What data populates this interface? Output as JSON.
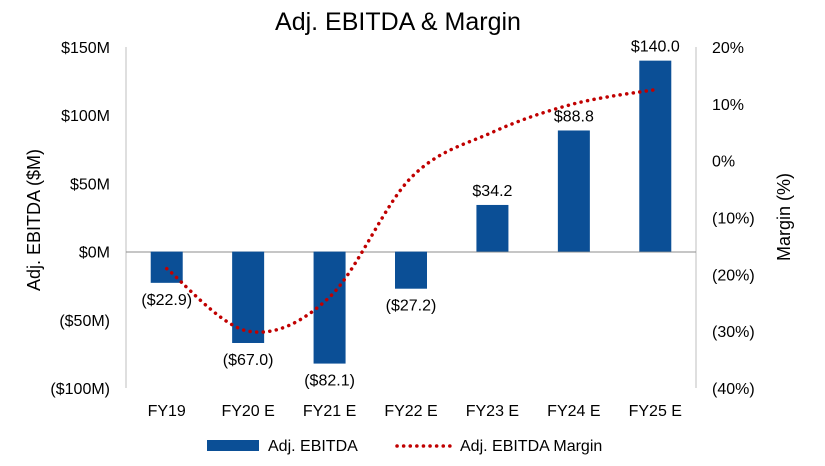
{
  "chart_data": {
    "type": "bar",
    "title": "Adj. EBITDA & Margin",
    "categories": [
      "FY19",
      "FY20 E",
      "FY21 E",
      "FY22 E",
      "FY23 E",
      "FY24 E",
      "FY25 E"
    ],
    "series": [
      {
        "name": "Adj. EBITDA",
        "type": "bar",
        "axis": "left",
        "color": "#0b4f96",
        "values": [
          -22.9,
          -67.0,
          -82.1,
          -27.2,
          34.2,
          88.8,
          140.0
        ],
        "data_labels": [
          "($22.9)",
          "($67.0)",
          "($82.1)",
          "($27.2)",
          "$34.2",
          "$88.8",
          "$140.0"
        ]
      },
      {
        "name": "Adj. EBITDA Margin",
        "type": "line",
        "style": "dotted",
        "axis": "right",
        "color": "#c00000",
        "values": [
          -19,
          -30,
          -24,
          -3,
          5,
          10,
          12.5
        ]
      }
    ],
    "ylabel": "Adj. EBITDA ($M)",
    "ylim": [
      -100,
      150
    ],
    "yticks": [
      -100,
      -50,
      0,
      50,
      100,
      150
    ],
    "ytick_labels": [
      "($100M)",
      "($50M)",
      "$0M",
      "$50M",
      "$100M",
      "$150M"
    ],
    "y2label": "Margin (%)",
    "y2lim": [
      -40,
      20
    ],
    "y2ticks": [
      -40,
      -30,
      -20,
      -10,
      0,
      10,
      20
    ],
    "y2tick_labels": [
      "(40%)",
      "(30%)",
      "(20%)",
      "(10%)",
      "0%",
      "10%",
      "20%"
    ],
    "grid": false,
    "legend_position": "bottom-center"
  }
}
